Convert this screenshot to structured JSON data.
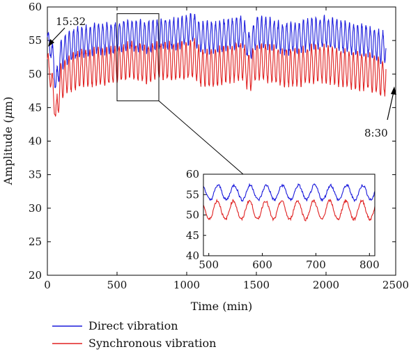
{
  "chart_data": {
    "type": "line",
    "xlabel": "Time (min)",
    "ylabel_prefix": "Amplitude (",
    "ylabel_mu": "μ",
    "ylabel_suffix": "m)",
    "xlim": [
      0,
      2500
    ],
    "ylim": [
      20,
      60
    ],
    "xticks": [
      "0",
      "500",
      "1000",
      "1500",
      "2000",
      "2500"
    ],
    "yticks": [
      "20",
      "25",
      "30",
      "35",
      "40",
      "45",
      "50",
      "55",
      "60"
    ],
    "grid": false,
    "legend_position": "bottom-left",
    "series": [
      {
        "name": "Direct vibration",
        "color": "#1a1adc",
        "x": [
          0,
          20,
          40,
          60,
          80,
          100,
          150,
          200,
          250,
          300,
          400,
          500,
          600,
          700,
          800,
          900,
          1000,
          1050,
          1100,
          1200,
          1300,
          1400,
          1450,
          1500,
          1600,
          1700,
          1800,
          1900,
          2000,
          2100,
          2200,
          2300,
          2400,
          2430
        ],
        "y": [
          55.5,
          54.0,
          53.0,
          48.0,
          51.0,
          53.0,
          54.0,
          54.5,
          55.0,
          55.0,
          55.3,
          55.5,
          56.0,
          55.5,
          56.0,
          56.0,
          56.5,
          57.0,
          55.5,
          55.5,
          56.0,
          56.3,
          54.0,
          56.3,
          56.0,
          55.2,
          55.5,
          56.0,
          56.3,
          55.7,
          55.2,
          55.0,
          54.0,
          54.0
        ],
        "amplitude": 2.2
      },
      {
        "name": "Synchronous vibration",
        "color": "#e02020",
        "x": [
          0,
          20,
          40,
          60,
          80,
          100,
          150,
          200,
          250,
          300,
          400,
          500,
          600,
          700,
          800,
          900,
          1000,
          1050,
          1100,
          1200,
          1300,
          1400,
          1450,
          1500,
          1600,
          1700,
          1800,
          1900,
          2000,
          2100,
          2200,
          2300,
          2400,
          2430
        ],
        "y": [
          52.0,
          50.0,
          48.0,
          43.5,
          47.0,
          49.0,
          50.0,
          50.5,
          51.0,
          51.0,
          51.0,
          51.5,
          52.0,
          51.5,
          52.0,
          52.0,
          52.0,
          52.5,
          51.0,
          51.0,
          51.5,
          52.0,
          50.0,
          52.0,
          51.5,
          51.0,
          51.0,
          51.5,
          51.5,
          51.0,
          50.5,
          50.5,
          49.5,
          49.5
        ],
        "amplitude": 2.7
      }
    ],
    "annotations": [
      {
        "text": "15:32",
        "x": 0,
        "y": 53.5
      },
      {
        "text": "8:30",
        "x": 2430,
        "y": 50
      }
    ],
    "zoom_window": {
      "xlim": [
        500,
        800
      ],
      "ylim": [
        46,
        59
      ]
    },
    "inset": {
      "xlim": [
        490,
        810
      ],
      "ylim": [
        40,
        60
      ],
      "xticks": [
        "500",
        "600",
        "700",
        "800"
      ],
      "yticks": [
        "40",
        "45",
        "50",
        "55",
        "60"
      ],
      "period_min": 30,
      "direct_mean": 55.5,
      "direct_amplitude": 1.8,
      "synchronous_mean": 51.2,
      "synchronous_amplitude": 2.3
    }
  }
}
